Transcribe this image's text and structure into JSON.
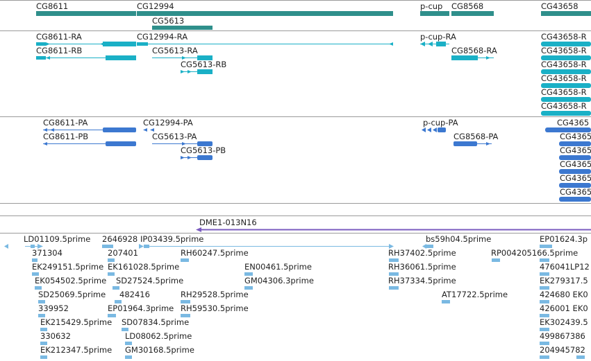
{
  "colors": {
    "gene": "#2f8f8b",
    "transcript": "#1ab0c6",
    "protein": "#3c78d0",
    "clone": "#7a5bbf",
    "est": "#7ab9e2",
    "separator": "#9a9a9a"
  },
  "genes": [
    {
      "label": "CG8611"
    },
    {
      "label": "CG12994"
    },
    {
      "label": "CG5613"
    },
    {
      "label": "p-cup"
    },
    {
      "label": "CG8568"
    },
    {
      "label": "CG43658"
    }
  ],
  "transcripts": [
    {
      "label": "CG8611-RA"
    },
    {
      "label": "CG8611-RB"
    },
    {
      "label": "CG12994-RA"
    },
    {
      "label": "CG5613-RA"
    },
    {
      "label": "CG5613-RB"
    },
    {
      "label": "p-cup-RA"
    },
    {
      "label": "CG8568-RA"
    },
    {
      "label": "CG43658-R"
    },
    {
      "label": "CG43658-R"
    },
    {
      "label": "CG43658-R"
    },
    {
      "label": "CG43658-R"
    },
    {
      "label": "CG43658-R"
    },
    {
      "label": "CG43658-R"
    }
  ],
  "proteins": [
    {
      "label": "CG8611-PA"
    },
    {
      "label": "CG8611-PB"
    },
    {
      "label": "CG12994-PA"
    },
    {
      "label": "CG5613-PA"
    },
    {
      "label": "CG5613-PB"
    },
    {
      "label": "p-cup-PA"
    },
    {
      "label": "CG8568-PA"
    },
    {
      "label": "CG4365"
    },
    {
      "label": "CG4365"
    },
    {
      "label": "CG4365"
    },
    {
      "label": "CG4365"
    },
    {
      "label": "CG4365"
    },
    {
      "label": "CG4365"
    }
  ],
  "clone": {
    "label": "DME1-013N16"
  },
  "ests": [
    {
      "label": "LD01109.5prime"
    },
    {
      "label": "2646928"
    },
    {
      "label": "IP03439.5prime"
    },
    {
      "label": "bs59h04.5prime"
    },
    {
      "label": "EP01624.3p"
    },
    {
      "label": "371304"
    },
    {
      "label": "207401"
    },
    {
      "label": "RH60247.5prime"
    },
    {
      "label": "RH37402.5prime"
    },
    {
      "label": "RP004205166.5prime"
    },
    {
      "label": "EK249151.5prime"
    },
    {
      "label": "EK161028.5prime"
    },
    {
      "label": "EN00461.5prime"
    },
    {
      "label": "RH36061.5prime"
    },
    {
      "label": "476041LP12"
    },
    {
      "label": "EK054502.5prime"
    },
    {
      "label": "SD27524.5prime"
    },
    {
      "label": "GM04306.3prime"
    },
    {
      "label": "RH37334.5prime"
    },
    {
      "label": "EK279317.5"
    },
    {
      "label": "SD25069.5prime"
    },
    {
      "label": "482416"
    },
    {
      "label": "RH29528.5prime"
    },
    {
      "label": "AT17722.5prime"
    },
    {
      "label": "424680 EK0"
    },
    {
      "label": "339952"
    },
    {
      "label": "EP01964.3prime"
    },
    {
      "label": "RH59530.5prime"
    },
    {
      "label": "426001 EK0"
    },
    {
      "label": "EK215429.5prime"
    },
    {
      "label": "SD07834.5prime"
    },
    {
      "label": "EK302439.5"
    },
    {
      "label": "330632"
    },
    {
      "label": "LD08062.5prime"
    },
    {
      "label": "499867386"
    },
    {
      "label": "EK212347.5prime"
    },
    {
      "label": "GM30168.5prime"
    },
    {
      "label": "204945782"
    }
  ]
}
